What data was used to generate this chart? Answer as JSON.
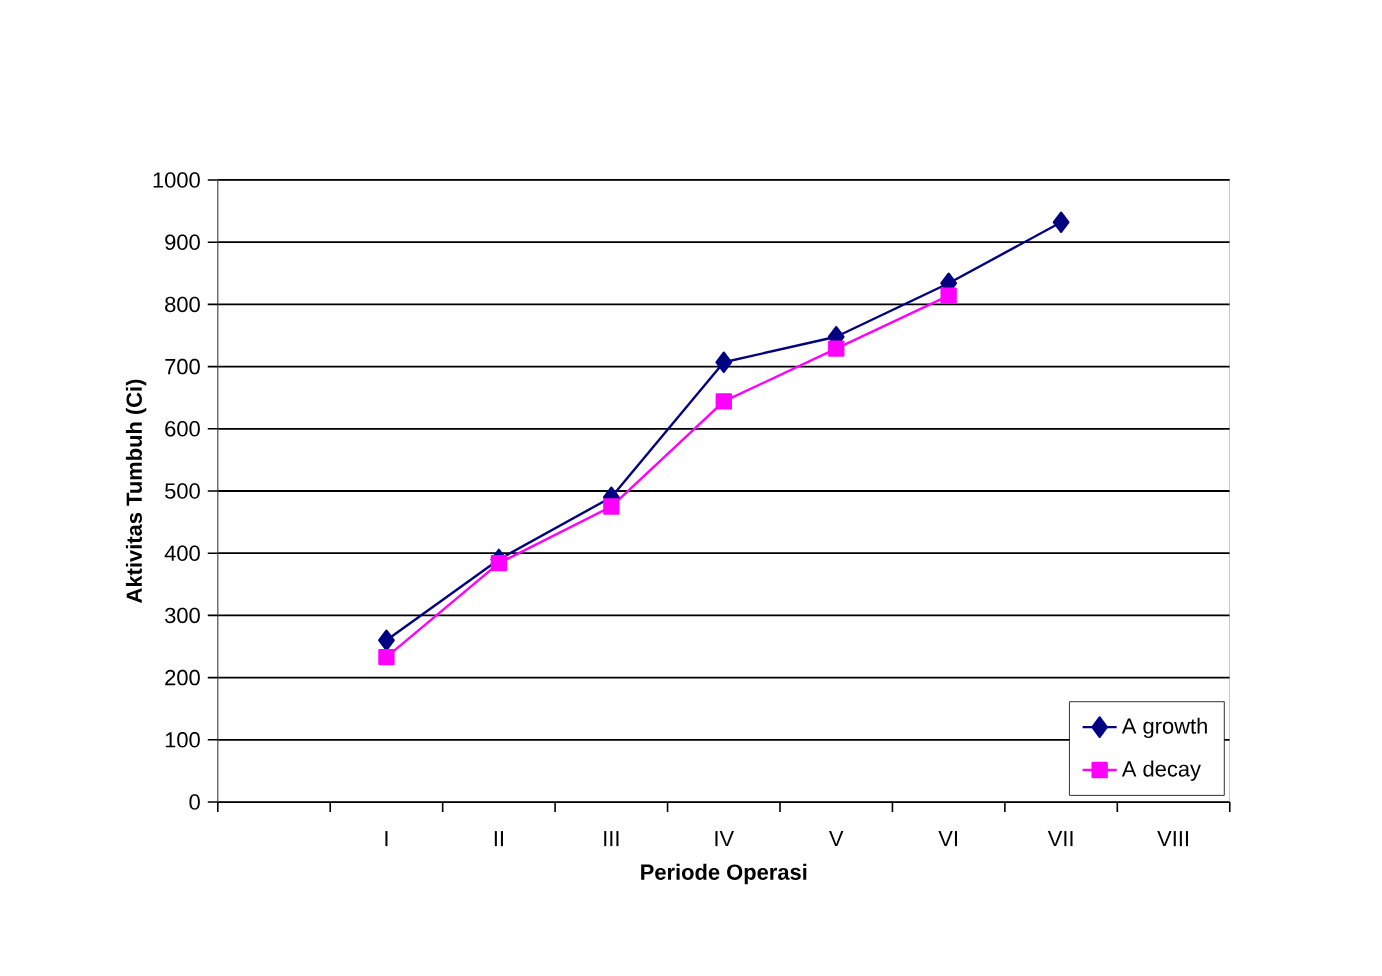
{
  "chart_data": {
    "type": "line",
    "xlabel": "Periode Operasi",
    "ylabel": "Aktivitas Tumbuh (Ci)",
    "categories": [
      null,
      "I",
      "II",
      "III",
      "IV",
      "V",
      "VI",
      "VII",
      "VIII"
    ],
    "series": [
      {
        "name": "A growth",
        "color": "#000080",
        "marker": "diamond",
        "values": [
          null,
          260,
          390,
          490,
          707,
          748,
          834,
          932,
          null
        ]
      },
      {
        "name": "A decay",
        "color": "#ff00ff",
        "marker": "square",
        "values": [
          null,
          233,
          384,
          475,
          644,
          729,
          814,
          null,
          null
        ]
      }
    ],
    "ylim": [
      0,
      1000
    ],
    "yticks": [
      0,
      100,
      200,
      300,
      400,
      500,
      600,
      700,
      800,
      900,
      1000
    ],
    "grid": "y",
    "legend": "bottom right",
    "line_style": "solid"
  }
}
